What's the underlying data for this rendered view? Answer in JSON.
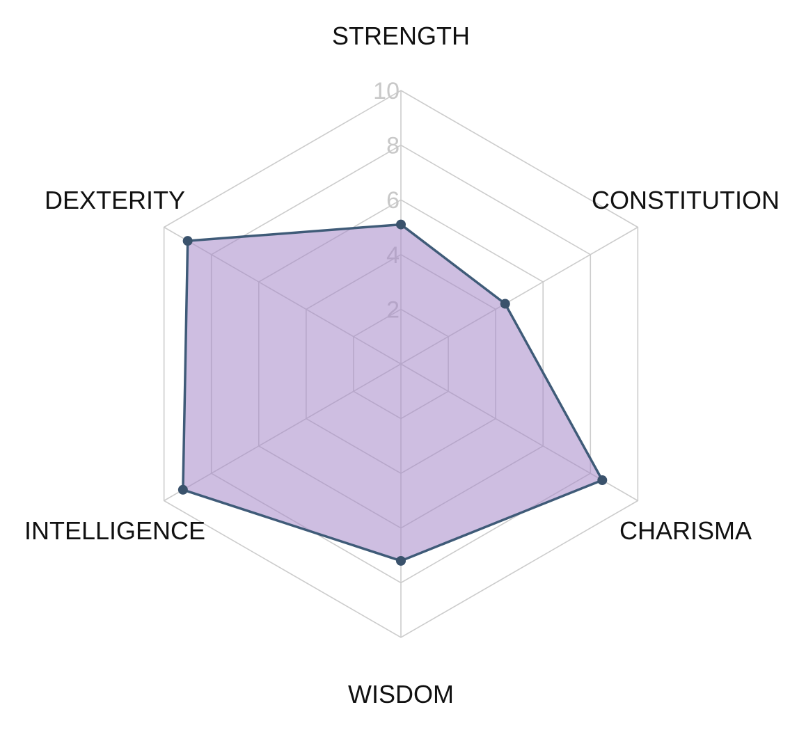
{
  "chart_data": {
    "type": "radar",
    "title": "",
    "axes": [
      "STRENGTH",
      "CONSTITUTION",
      "CHARISMA",
      "WISDOM",
      "INTELLIGENCE",
      "DEXTERITY"
    ],
    "rlim": [
      0,
      10
    ],
    "ticks": [
      2,
      4,
      6,
      8,
      10
    ],
    "tick_labels": [
      "2",
      "4",
      "6",
      "8",
      "10"
    ],
    "grid": true,
    "legend": "none",
    "series": [
      {
        "values": [
          5.1,
          4.4,
          8.5,
          7.2,
          9.2,
          9.0
        ],
        "fill_color": "#a689c9",
        "fill_opacity": 0.55,
        "line_color": "#3f5b78",
        "point_color": "#3a526c"
      }
    ]
  }
}
